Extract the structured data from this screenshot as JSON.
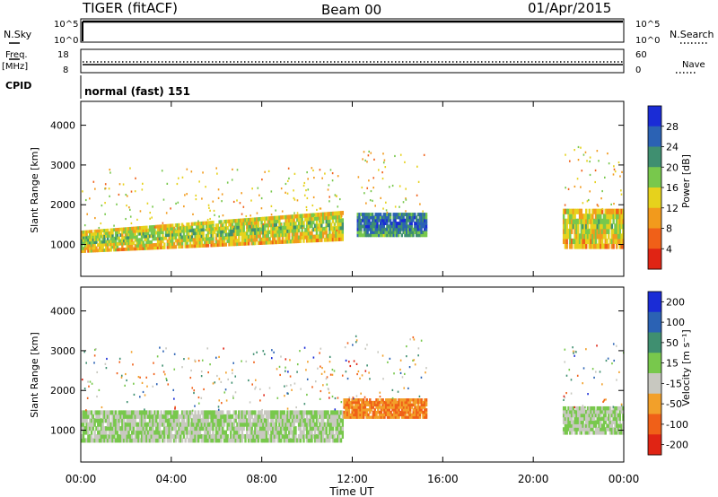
{
  "header": {
    "station": "TIGER (fitACF)",
    "beam": "Beam 00",
    "date": "01/Apr/2015"
  },
  "top_panels": {
    "nsky_label": "N.Sky",
    "nsky_ticks": [
      "10^5",
      "10^0"
    ],
    "nsearch_label": "N.Search",
    "nsearch_ticks": [
      "10^5",
      "10^0"
    ],
    "freq_label": "Freq.",
    "freq_unit": "[MHz]",
    "freq_ticks": [
      "18",
      "8"
    ],
    "nave_label": "Nave",
    "nave_ticks": [
      "60",
      "0"
    ],
    "cpid_label": "CPID",
    "cpid_value": "normal (fast) 151"
  },
  "colors": {
    "power_scale": [
      "#1a2cd6",
      "#2b62b4",
      "#3f8f70",
      "#78c84c",
      "#e6d21c",
      "#f29a1c",
      "#f06018",
      "#e02414"
    ],
    "velocity_scale": [
      "#1a2cd6",
      "#2b62b4",
      "#3f8f70",
      "#78c84c",
      "#c8c8c0",
      "#f2a02a",
      "#f06018",
      "#e02414"
    ]
  },
  "chart_data": [
    {
      "type": "heatmap",
      "title": "",
      "xlabel": "",
      "ylabel": "Slant Range [km]",
      "xlim": [
        "00:00",
        "24:00"
      ],
      "ylim": [
        200,
        4600
      ],
      "yticks": [
        "4000",
        "3000",
        "2000",
        "1000"
      ],
      "colorbar": {
        "label": "Power [dB]",
        "ticks": [
          "28",
          "24",
          "20",
          "16",
          "12",
          "8",
          "4"
        ],
        "range": [
          0,
          32
        ]
      },
      "features": [
        {
          "x_hours": [
            0,
            11.6
          ],
          "range_km": [
            800,
            1350
          ],
          "value_db": 18
        },
        {
          "x_hours": [
            12.2,
            15.3
          ],
          "range_km": [
            1200,
            1800
          ],
          "value_db": 27
        },
        {
          "x_hours": [
            21.3,
            24
          ],
          "range_km": [
            900,
            1900
          ],
          "value_db": 17
        }
      ]
    },
    {
      "type": "heatmap",
      "title": "",
      "xlabel": "Time UT",
      "ylabel": "Slant Range [km]",
      "xlim": [
        "00:00",
        "24:00"
      ],
      "ylim": [
        200,
        4600
      ],
      "xticks": [
        "00:00",
        "04:00",
        "08:00",
        "12:00",
        "16:00",
        "20:00",
        "00:00"
      ],
      "yticks": [
        "4000",
        "3000",
        "2000",
        "1000"
      ],
      "colorbar": {
        "label": "Velocity [m s⁻¹]",
        "ticks": [
          "200",
          "100",
          "50",
          "15",
          "-15",
          "-50",
          "-100",
          "-200"
        ],
        "range": [
          -250,
          250
        ]
      },
      "features": [
        {
          "x_hours": [
            0,
            11.6
          ],
          "range_km": [
            700,
            1500
          ],
          "value_ms": 0
        },
        {
          "x_hours": [
            11.6,
            15.3
          ],
          "range_km": [
            1300,
            1800
          ],
          "value_ms": -120
        },
        {
          "x_hours": [
            21.3,
            24
          ],
          "range_km": [
            900,
            1600
          ],
          "value_ms": 0
        }
      ]
    }
  ]
}
